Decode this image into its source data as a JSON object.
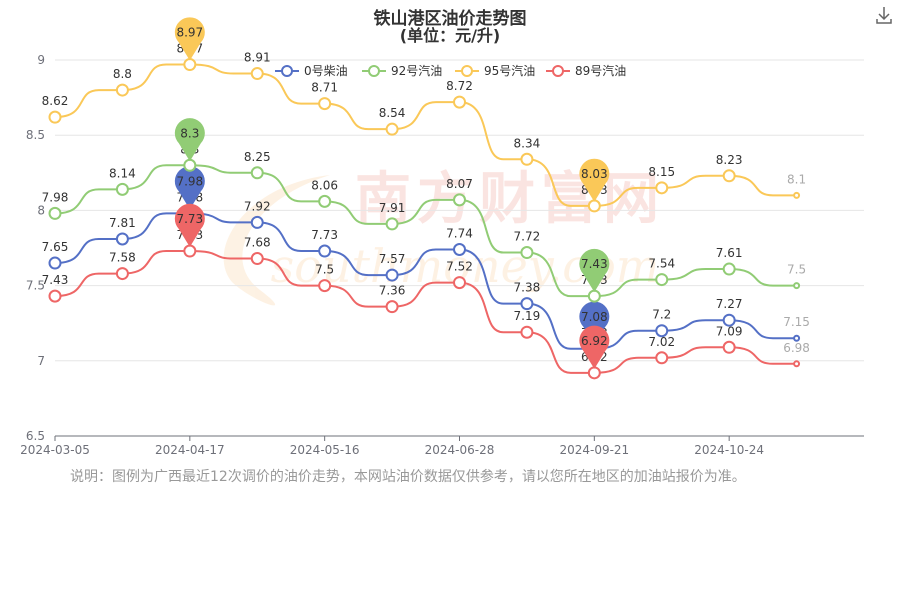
{
  "chart_data": {
    "type": "line",
    "title": "铁山港区油价走势图",
    "subtitle": "(单位：元/升)",
    "x": [
      "2024-03-05",
      "",
      "2024-04-17",
      "",
      "2024-05-16",
      "",
      "2024-06-28",
      "",
      "2024-09-21",
      "",
      "2024-10-24",
      ""
    ],
    "x_ticks": [
      "2024-03-05",
      "2024-04-17",
      "2024-05-16",
      "2024-06-28",
      "2024-09-21",
      "2024-10-24"
    ],
    "ylim": [
      6.5,
      9
    ],
    "yticks": [
      "6.5",
      "7",
      "7.5",
      "8",
      "8.5",
      "9"
    ],
    "grid": true,
    "legend_position": "top",
    "series": [
      {
        "name": "0号柴油",
        "color": "#5470c6",
        "values": [
          7.65,
          7.81,
          7.98,
          7.92,
          7.73,
          7.57,
          7.74,
          7.38,
          7.08,
          7.2,
          7.27,
          7.15
        ],
        "marker": {
          "index": 2,
          "label": "7.98"
        },
        "marker2": {
          "index": 8,
          "label": "7.08"
        }
      },
      {
        "name": "92号汽油",
        "color": "#91cc75",
        "values": [
          7.98,
          8.14,
          8.3,
          8.25,
          8.06,
          7.91,
          8.07,
          7.72,
          7.43,
          7.54,
          7.61,
          7.5
        ],
        "marker": {
          "index": 2,
          "label": "8.3"
        },
        "marker2": {
          "index": 8,
          "label": "7.43"
        }
      },
      {
        "name": "95号汽油",
        "color": "#fac858",
        "values": [
          8.62,
          8.8,
          8.97,
          8.91,
          8.71,
          8.54,
          8.72,
          8.34,
          8.03,
          8.15,
          8.23,
          8.1
        ],
        "marker": {
          "index": 2,
          "label": "8.97"
        },
        "marker2": {
          "index": 8,
          "label": "8.03"
        }
      },
      {
        "name": "89号汽油",
        "color": "#ee6666",
        "values": [
          7.43,
          7.58,
          7.73,
          7.68,
          7.5,
          7.36,
          7.52,
          7.19,
          6.92,
          7.02,
          7.09,
          6.98
        ],
        "marker": {
          "index": 2,
          "label": "7.73"
        },
        "marker2": {
          "index": 8,
          "label": "6.92"
        }
      }
    ]
  },
  "watermark": {
    "main": "南方财富网",
    "sub": "southmoney.com"
  },
  "note": "说明：图例为广西最近12次调价的油价走势，本网站油价数据仅供参考，请以您所在地区的加油站报价为准。",
  "download_icon": "download-icon"
}
